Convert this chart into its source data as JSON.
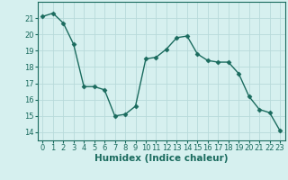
{
  "x": [
    0,
    1,
    2,
    3,
    4,
    5,
    6,
    7,
    8,
    9,
    10,
    11,
    12,
    13,
    14,
    15,
    16,
    17,
    18,
    19,
    20,
    21,
    22,
    23
  ],
  "y": [
    21.1,
    21.3,
    20.7,
    19.4,
    16.8,
    16.8,
    16.6,
    15.0,
    15.1,
    15.6,
    18.5,
    18.6,
    19.1,
    19.8,
    19.9,
    18.8,
    18.4,
    18.3,
    18.3,
    17.6,
    16.2,
    15.4,
    15.2,
    14.1
  ],
  "line_color": "#1a6b5e",
  "marker": "D",
  "marker_size": 2.5,
  "bg_color": "#d6f0ef",
  "grid_color": "#b8dada",
  "xlabel": "Humidex (Indice chaleur)",
  "ylim": [
    13.5,
    22.0
  ],
  "xlim": [
    -0.5,
    23.5
  ],
  "yticks": [
    14,
    15,
    16,
    17,
    18,
    19,
    20,
    21
  ],
  "xticks": [
    0,
    1,
    2,
    3,
    4,
    5,
    6,
    7,
    8,
    9,
    10,
    11,
    12,
    13,
    14,
    15,
    16,
    17,
    18,
    19,
    20,
    21,
    22,
    23
  ],
  "tick_fontsize": 6,
  "xlabel_fontsize": 7.5,
  "spine_color": "#1a6b5e"
}
